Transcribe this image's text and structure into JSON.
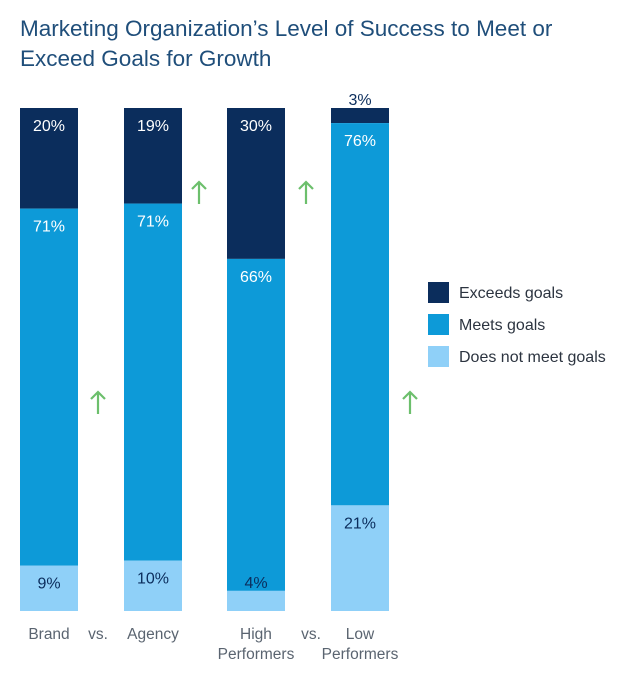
{
  "title": "Marketing Organization’s Level of Success to Meet or Exceed Goals for Growth",
  "chart_data": {
    "type": "bar",
    "stacked": true,
    "percent": true,
    "title": "Marketing Organization’s Level of Success to Meet or Exceed Goals for Growth",
    "categories": [
      "Brand",
      "Agency",
      "High Performers",
      "Low Performers"
    ],
    "category_label_lines": [
      [
        "Brand"
      ],
      [
        "Agency"
      ],
      [
        "High",
        "Performers"
      ],
      [
        "Low",
        "Performers"
      ]
    ],
    "comparison_separator": "vs.",
    "series": [
      {
        "name": "Exceeds goals",
        "color": "#0b2d5c",
        "values": [
          20,
          19,
          30,
          3
        ],
        "labels": [
          "20%",
          "19%",
          "30%",
          "3%"
        ]
      },
      {
        "name": "Meets goals",
        "color": "#0d9ad8",
        "values": [
          71,
          71,
          66,
          76
        ],
        "labels": [
          "71%",
          "71%",
          "66%",
          "76%"
        ]
      },
      {
        "name": "Does not meet goals",
        "color": "#8fd0f8",
        "values": [
          9,
          10,
          4,
          21
        ],
        "labels": [
          "9%",
          "10%",
          "4%",
          "21%"
        ]
      }
    ],
    "ylim": [
      0,
      100
    ],
    "legend_position": "right",
    "grid": false,
    "indicators": [
      {
        "icon": "up-arrow-icon",
        "color": "#6cbf6c",
        "category": "Brand",
        "series": "Meets goals"
      },
      {
        "icon": "up-arrow-icon",
        "color": "#6cbf6c",
        "category": "Agency",
        "series": "Exceeds goals"
      },
      {
        "icon": "up-arrow-icon",
        "color": "#6cbf6c",
        "category": "High Performers",
        "series": "Exceeds goals"
      },
      {
        "icon": "up-arrow-icon",
        "color": "#6cbf6c",
        "category": "Low Performers",
        "series": "Meets goals"
      }
    ]
  }
}
